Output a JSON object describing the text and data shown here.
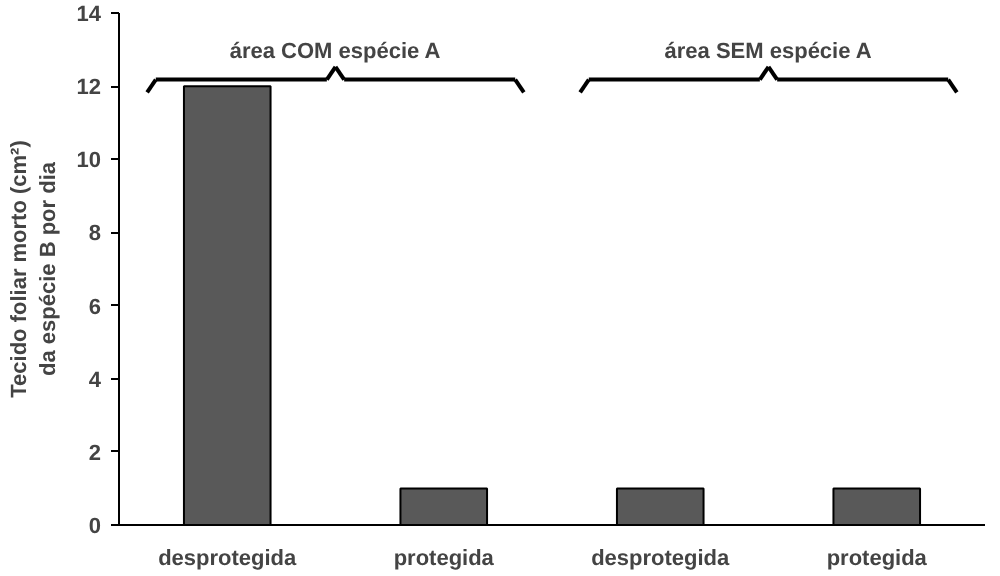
{
  "chart_data": {
    "type": "bar",
    "categories": [
      "desprotegida",
      "protegida",
      "desprotegida",
      "protegida"
    ],
    "values": [
      12,
      1,
      1,
      1
    ],
    "color": "#595959",
    "ylabel": "Tecido foliar morto (cm²)\nda espécie B por dia",
    "ylim": [
      0,
      14
    ],
    "yticks": [
      0,
      2,
      4,
      6,
      8,
      10,
      12,
      14
    ],
    "annotations": [
      "área COM espécie A",
      "área SEM espécie A"
    ],
    "grid": false
  }
}
